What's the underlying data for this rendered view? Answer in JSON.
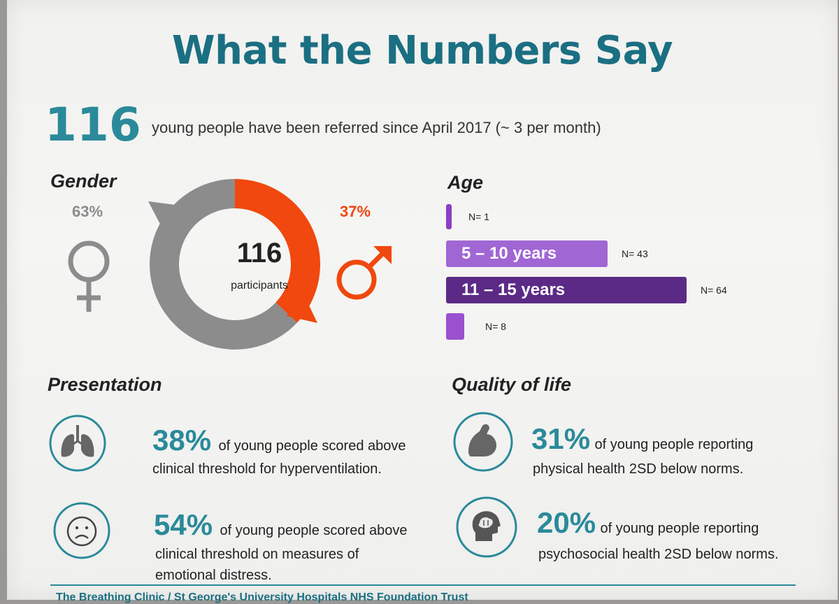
{
  "title": "What the Numbers Say",
  "referrals": {
    "count": "116",
    "text": "young people have been referred since April 2017 (~ 3 per month)"
  },
  "gender": {
    "heading": "Gender",
    "female_pct": "63%",
    "male_pct": "37%",
    "female_fraction": 0.63,
    "male_fraction": 0.37,
    "total": "116",
    "total_label": "participants",
    "colors": {
      "female": "#8c8c8c",
      "male": "#f0480e"
    }
  },
  "chart_data": {
    "type": "bar",
    "orientation": "horizontal",
    "title": "Age",
    "categories": [
      "",
      "5 – 10 years",
      "11 – 15 years",
      ""
    ],
    "values": [
      1,
      43,
      64,
      8
    ],
    "value_labels": [
      "N= 1",
      "N= 43",
      "N= 64",
      "N= 8"
    ],
    "colors": [
      "#8a3fc4",
      "#a066d4",
      "#5b2a86",
      "#9a50cf"
    ]
  },
  "presentation": {
    "heading": "Presentation",
    "items": [
      {
        "pct": "38%",
        "line1": "of young people scored above",
        "rest": [
          "clinical threshold for hyperventilation."
        ],
        "icon": "lungs-icon"
      },
      {
        "pct": "54%",
        "line1": "of young people scored above",
        "rest": [
          "clinical threshold on measures of",
          "emotional distress."
        ],
        "icon": "sad-face-icon"
      }
    ]
  },
  "quality": {
    "heading": "Quality of life",
    "items": [
      {
        "pct": "31%",
        "line1": "of young people reporting",
        "rest": [
          "physical health 2SD below norms."
        ],
        "icon": "flexed-arm-icon"
      },
      {
        "pct": "20%",
        "line1": "of young people reporting",
        "rest": [
          "psychosocial health 2SD below norms."
        ],
        "icon": "head-brain-icon"
      }
    ]
  },
  "footer": "The Breathing Clinic / St George's University Hospitals NHS Foundation Trust",
  "colors": {
    "teal": "#2a8a9a",
    "title": "#1b6f82",
    "orange": "#f0480e",
    "grey": "#8c8c8c"
  }
}
